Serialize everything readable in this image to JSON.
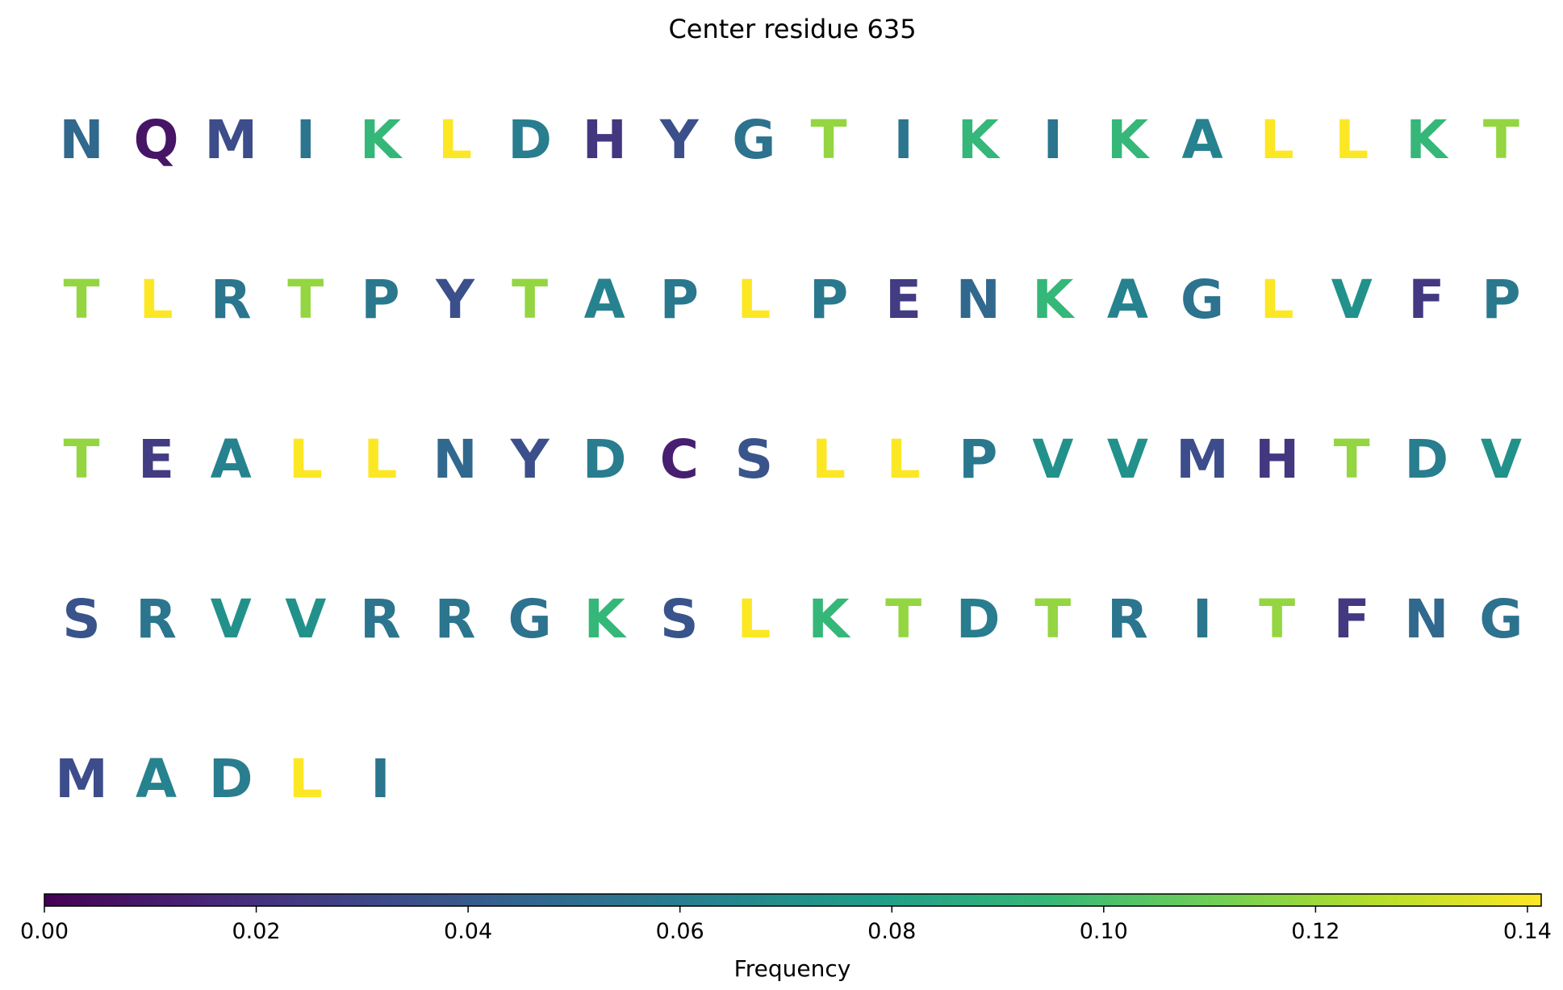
{
  "chart_data": {
    "type": "heatmap",
    "title": "Center residue 635",
    "colormap": "viridis",
    "colorbar": {
      "label": "Frequency",
      "range": [
        0,
        0.1413
      ],
      "ticks": [
        0.0,
        0.02,
        0.04,
        0.06,
        0.08,
        0.1,
        0.12,
        0.14
      ],
      "tick_labels": [
        "0.00",
        "0.02",
        "0.04",
        "0.06",
        "0.08",
        "0.10",
        "0.12",
        "0.14"
      ],
      "orientation": "horizontal",
      "placement": "bottom"
    },
    "columns": 20,
    "residues": [
      {
        "aa": "N",
        "frequency": 0.047
      },
      {
        "aa": "Q",
        "frequency": 0.008
      },
      {
        "aa": "M",
        "frequency": 0.033
      },
      {
        "aa": "I",
        "frequency": 0.055
      },
      {
        "aa": "K",
        "frequency": 0.094
      },
      {
        "aa": "L",
        "frequency": 0.141
      },
      {
        "aa": "D",
        "frequency": 0.06
      },
      {
        "aa": "H",
        "frequency": 0.023
      },
      {
        "aa": "Y",
        "frequency": 0.035
      },
      {
        "aa": "G",
        "frequency": 0.053
      },
      {
        "aa": "T",
        "frequency": 0.118
      },
      {
        "aa": "I",
        "frequency": 0.055
      },
      {
        "aa": "K",
        "frequency": 0.094
      },
      {
        "aa": "I",
        "frequency": 0.055
      },
      {
        "aa": "K",
        "frequency": 0.094
      },
      {
        "aa": "A",
        "frequency": 0.063
      },
      {
        "aa": "L",
        "frequency": 0.141
      },
      {
        "aa": "L",
        "frequency": 0.141
      },
      {
        "aa": "K",
        "frequency": 0.094
      },
      {
        "aa": "T",
        "frequency": 0.118
      },
      {
        "aa": "T",
        "frequency": 0.118
      },
      {
        "aa": "L",
        "frequency": 0.141
      },
      {
        "aa": "R",
        "frequency": 0.055
      },
      {
        "aa": "T",
        "frequency": 0.118
      },
      {
        "aa": "P",
        "frequency": 0.057
      },
      {
        "aa": "Y",
        "frequency": 0.035
      },
      {
        "aa": "T",
        "frequency": 0.118
      },
      {
        "aa": "A",
        "frequency": 0.063
      },
      {
        "aa": "P",
        "frequency": 0.057
      },
      {
        "aa": "L",
        "frequency": 0.141
      },
      {
        "aa": "P",
        "frequency": 0.057
      },
      {
        "aa": "E",
        "frequency": 0.025
      },
      {
        "aa": "N",
        "frequency": 0.047
      },
      {
        "aa": "K",
        "frequency": 0.094
      },
      {
        "aa": "A",
        "frequency": 0.063
      },
      {
        "aa": "G",
        "frequency": 0.053
      },
      {
        "aa": "L",
        "frequency": 0.141
      },
      {
        "aa": "V",
        "frequency": 0.071
      },
      {
        "aa": "F",
        "frequency": 0.024
      },
      {
        "aa": "P",
        "frequency": 0.057
      },
      {
        "aa": "T",
        "frequency": 0.118
      },
      {
        "aa": "E",
        "frequency": 0.025
      },
      {
        "aa": "A",
        "frequency": 0.063
      },
      {
        "aa": "L",
        "frequency": 0.141
      },
      {
        "aa": "L",
        "frequency": 0.141
      },
      {
        "aa": "N",
        "frequency": 0.047
      },
      {
        "aa": "Y",
        "frequency": 0.035
      },
      {
        "aa": "D",
        "frequency": 0.06
      },
      {
        "aa": "C",
        "frequency": 0.012
      },
      {
        "aa": "S",
        "frequency": 0.037
      },
      {
        "aa": "L",
        "frequency": 0.141
      },
      {
        "aa": "L",
        "frequency": 0.141
      },
      {
        "aa": "P",
        "frequency": 0.057
      },
      {
        "aa": "V",
        "frequency": 0.071
      },
      {
        "aa": "V",
        "frequency": 0.071
      },
      {
        "aa": "M",
        "frequency": 0.033
      },
      {
        "aa": "H",
        "frequency": 0.023
      },
      {
        "aa": "T",
        "frequency": 0.118
      },
      {
        "aa": "D",
        "frequency": 0.06
      },
      {
        "aa": "V",
        "frequency": 0.071
      },
      {
        "aa": "S",
        "frequency": 0.037
      },
      {
        "aa": "R",
        "frequency": 0.055
      },
      {
        "aa": "V",
        "frequency": 0.071
      },
      {
        "aa": "V",
        "frequency": 0.071
      },
      {
        "aa": "R",
        "frequency": 0.055
      },
      {
        "aa": "R",
        "frequency": 0.055
      },
      {
        "aa": "G",
        "frequency": 0.053
      },
      {
        "aa": "K",
        "frequency": 0.094
      },
      {
        "aa": "S",
        "frequency": 0.037
      },
      {
        "aa": "L",
        "frequency": 0.141
      },
      {
        "aa": "K",
        "frequency": 0.094
      },
      {
        "aa": "T",
        "frequency": 0.118
      },
      {
        "aa": "D",
        "frequency": 0.06
      },
      {
        "aa": "T",
        "frequency": 0.118
      },
      {
        "aa": "R",
        "frequency": 0.055
      },
      {
        "aa": "I",
        "frequency": 0.055
      },
      {
        "aa": "T",
        "frequency": 0.118
      },
      {
        "aa": "F",
        "frequency": 0.024
      },
      {
        "aa": "N",
        "frequency": 0.047
      },
      {
        "aa": "G",
        "frequency": 0.053
      },
      {
        "aa": "M",
        "frequency": 0.033
      },
      {
        "aa": "A",
        "frequency": 0.063
      },
      {
        "aa": "D",
        "frequency": 0.06
      },
      {
        "aa": "L",
        "frequency": 0.141
      },
      {
        "aa": "I",
        "frequency": 0.055
      }
    ]
  }
}
